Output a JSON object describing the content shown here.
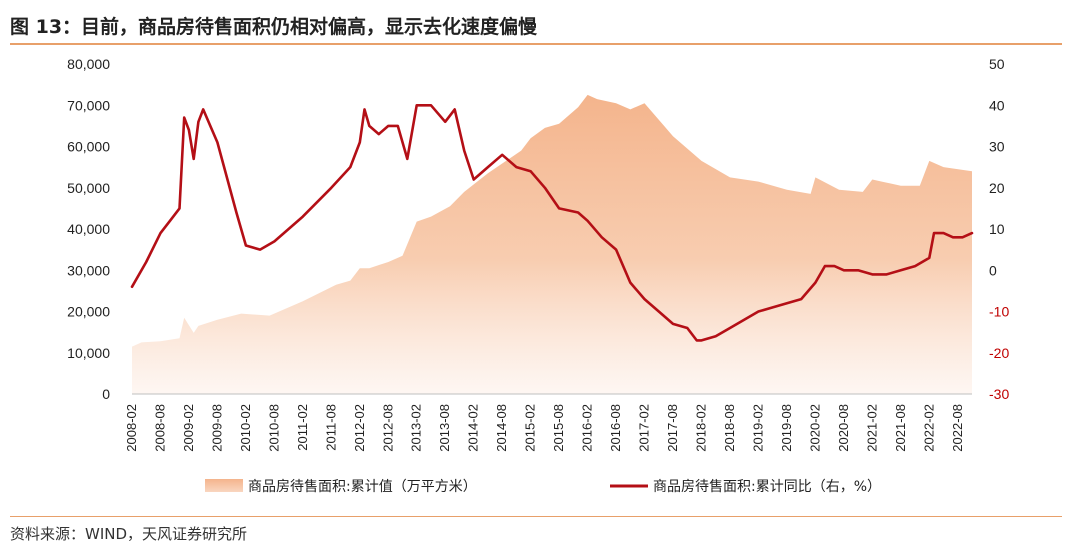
{
  "header": {
    "title": "图 13：目前，商品房待售面积仍相对偏高，显示去化速度偏慢"
  },
  "footer": {
    "source": "资料来源：WIND，天风证券研究所"
  },
  "colors": {
    "area_fill": "#f4b48c",
    "line": "#b40f16",
    "rule": "#e8a06a",
    "negative_tick": "#c00000"
  },
  "chart_data": {
    "type": "line",
    "left_axis": {
      "ylim": [
        0,
        80000
      ],
      "ticks": [
        0,
        10000,
        20000,
        30000,
        40000,
        50000,
        60000,
        70000,
        80000
      ],
      "tick_labels": [
        "0",
        "10,000",
        "20,000",
        "30,000",
        "40,000",
        "50,000",
        "60,000",
        "70,000",
        "80,000"
      ]
    },
    "right_axis": {
      "ylim": [
        -30,
        50
      ],
      "ticks": [
        -30,
        -20,
        -10,
        0,
        10,
        20,
        30,
        40,
        50
      ],
      "tick_labels": [
        "-30",
        "-20",
        "-10",
        "0",
        "10",
        "20",
        "30",
        "40",
        "50"
      ]
    },
    "x_axis": {
      "start": "2008-02",
      "end": "2022-11",
      "tick_labels": [
        "2008-02",
        "2008-08",
        "2009-02",
        "2009-08",
        "2010-02",
        "2010-08",
        "2011-02",
        "2011-08",
        "2012-02",
        "2012-08",
        "2013-02",
        "2013-08",
        "2014-02",
        "2014-08",
        "2015-02",
        "2015-08",
        "2016-02",
        "2016-08",
        "2017-02",
        "2017-08",
        "2018-02",
        "2018-08",
        "2019-02",
        "2019-08",
        "2020-02",
        "2020-08",
        "2021-02",
        "2021-08",
        "2022-02",
        "2022-08"
      ]
    },
    "series": [
      {
        "name": "商品房待售面积:累计值（万平方米）",
        "kind": "area",
        "axis": "left",
        "points": [
          [
            "2008-02",
            11500
          ],
          [
            "2008-04",
            12500
          ],
          [
            "2008-08",
            12800
          ],
          [
            "2008-12",
            13500
          ],
          [
            "2009-01",
            18500
          ],
          [
            "2009-03",
            14800
          ],
          [
            "2009-04",
            16500
          ],
          [
            "2009-08",
            18000
          ],
          [
            "2010-01",
            19500
          ],
          [
            "2010-07",
            19000
          ],
          [
            "2011-02",
            22500
          ],
          [
            "2011-09",
            26500
          ],
          [
            "2011-12",
            27500
          ],
          [
            "2012-02",
            30500
          ],
          [
            "2012-04",
            30500
          ],
          [
            "2012-08",
            32000
          ],
          [
            "2012-11",
            33500
          ],
          [
            "2013-02",
            41800
          ],
          [
            "2013-05",
            43000
          ],
          [
            "2013-09",
            45500
          ],
          [
            "2013-12",
            49000
          ],
          [
            "2014-05",
            53500
          ],
          [
            "2014-12",
            59000
          ],
          [
            "2015-02",
            62000
          ],
          [
            "2015-05",
            64500
          ],
          [
            "2015-08",
            65500
          ],
          [
            "2015-12",
            69500
          ],
          [
            "2016-02",
            72500
          ],
          [
            "2016-04",
            71500
          ],
          [
            "2016-08",
            70500
          ],
          [
            "2016-11",
            69000
          ],
          [
            "2017-02",
            70500
          ],
          [
            "2017-08",
            62500
          ],
          [
            "2018-02",
            56500
          ],
          [
            "2018-08",
            52500
          ],
          [
            "2019-02",
            51500
          ],
          [
            "2019-08",
            49500
          ],
          [
            "2020-01",
            48500
          ],
          [
            "2020-02",
            52500
          ],
          [
            "2020-07",
            49500
          ],
          [
            "2020-12",
            49000
          ],
          [
            "2021-02",
            52000
          ],
          [
            "2021-04",
            51500
          ],
          [
            "2021-08",
            50500
          ],
          [
            "2021-12",
            50500
          ],
          [
            "2022-02",
            56500
          ],
          [
            "2022-05",
            55000
          ],
          [
            "2022-11",
            54000
          ]
        ]
      },
      {
        "name": "商品房待售面积:累计同比（右，%）",
        "kind": "line",
        "axis": "right",
        "points": [
          [
            "2008-02",
            -4
          ],
          [
            "2008-05",
            2
          ],
          [
            "2008-08",
            9
          ],
          [
            "2008-10",
            12
          ],
          [
            "2008-12",
            15
          ],
          [
            "2009-01",
            37
          ],
          [
            "2009-02",
            34
          ],
          [
            "2009-03",
            27
          ],
          [
            "2009-04",
            36
          ],
          [
            "2009-05",
            39
          ],
          [
            "2009-08",
            31
          ],
          [
            "2009-12",
            14
          ],
          [
            "2010-02",
            6
          ],
          [
            "2010-05",
            5
          ],
          [
            "2010-08",
            7
          ],
          [
            "2011-02",
            13
          ],
          [
            "2011-08",
            20
          ],
          [
            "2011-12",
            25
          ],
          [
            "2012-02",
            31
          ],
          [
            "2012-03",
            39
          ],
          [
            "2012-04",
            35
          ],
          [
            "2012-06",
            33
          ],
          [
            "2012-08",
            35
          ],
          [
            "2012-10",
            35
          ],
          [
            "2012-12",
            27
          ],
          [
            "2013-02",
            40
          ],
          [
            "2013-05",
            40
          ],
          [
            "2013-08",
            36
          ],
          [
            "2013-10",
            39
          ],
          [
            "2013-12",
            29
          ],
          [
            "2014-02",
            22
          ],
          [
            "2014-05",
            25
          ],
          [
            "2014-08",
            28
          ],
          [
            "2014-11",
            25
          ],
          [
            "2015-02",
            24
          ],
          [
            "2015-05",
            20
          ],
          [
            "2015-08",
            15
          ],
          [
            "2015-12",
            14
          ],
          [
            "2016-02",
            12
          ],
          [
            "2016-05",
            8
          ],
          [
            "2016-08",
            5
          ],
          [
            "2016-11",
            -3
          ],
          [
            "2017-02",
            -7
          ],
          [
            "2017-05",
            -10
          ],
          [
            "2017-08",
            -13
          ],
          [
            "2017-11",
            -14
          ],
          [
            "2018-01",
            -17
          ],
          [
            "2018-02",
            -17
          ],
          [
            "2018-05",
            -16
          ],
          [
            "2018-08",
            -14
          ],
          [
            "2018-11",
            -12
          ],
          [
            "2019-02",
            -10
          ],
          [
            "2019-05",
            -9
          ],
          [
            "2019-08",
            -8
          ],
          [
            "2019-11",
            -7
          ],
          [
            "2020-02",
            -3
          ],
          [
            "2020-04",
            1
          ],
          [
            "2020-06",
            1
          ],
          [
            "2020-08",
            0
          ],
          [
            "2020-11",
            0
          ],
          [
            "2021-02",
            -1
          ],
          [
            "2021-05",
            -1
          ],
          [
            "2021-08",
            0
          ],
          [
            "2021-11",
            1
          ],
          [
            "2022-02",
            3
          ],
          [
            "2022-03",
            9
          ],
          [
            "2022-05",
            9
          ],
          [
            "2022-07",
            8
          ],
          [
            "2022-09",
            8
          ],
          [
            "2022-11",
            9
          ]
        ]
      }
    ],
    "legend": {
      "placement": "bottom",
      "items": [
        "商品房待售面积:累计值（万平方米）",
        "商品房待售面积:累计同比（右，%）"
      ]
    }
  }
}
